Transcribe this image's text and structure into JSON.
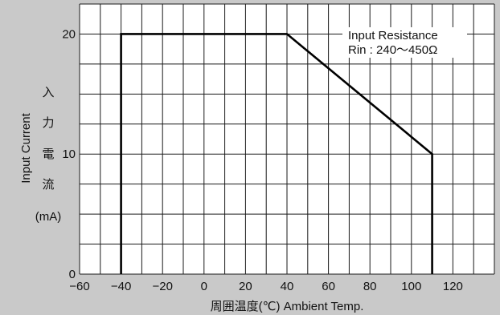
{
  "chart_data": {
    "type": "line",
    "title": "",
    "xlabel": "周囲温度(℃)  Ambient Temp.",
    "ylabel": "Input Current",
    "ylabel_jp": [
      "入",
      "力",
      "電",
      "流"
    ],
    "yunit": "(mA)",
    "xlim": [
      -60,
      140
    ],
    "ylim": [
      0,
      22.5
    ],
    "xticks": [
      -60,
      -40,
      -20,
      0,
      20,
      40,
      60,
      80,
      100,
      120
    ],
    "yticks": [
      0,
      10,
      20
    ],
    "xtick_labels": [
      "−60",
      "−40",
      "−20",
      "0",
      "20",
      "40",
      "60",
      "80",
      "100",
      "120"
    ],
    "ytick_labels": [
      "0",
      "10",
      "20"
    ],
    "grid": true,
    "series": [
      {
        "x": [
          -40,
          -40,
          40,
          110,
          110
        ],
        "y": [
          0,
          20,
          20,
          10,
          0
        ]
      }
    ],
    "annotations": [
      "Input Resistance",
      "Rin : 240〜450Ω"
    ],
    "colors": {
      "panel": "#c9c9c9",
      "plot": "#ffffff",
      "grid": "#1a1a1a",
      "line": "#000000"
    }
  }
}
